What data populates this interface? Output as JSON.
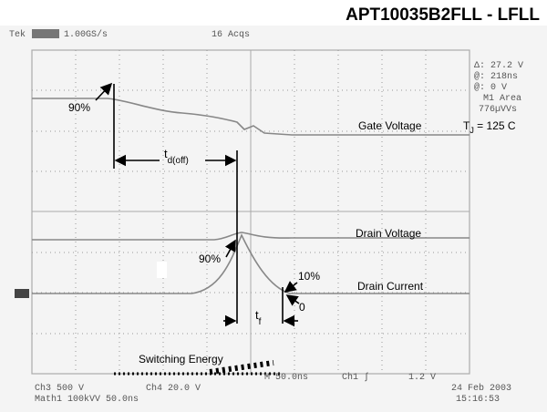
{
  "header": {
    "title": "APT10035B2FLL - LFLL"
  },
  "scope": {
    "brand": "Tek",
    "rate": "1.00GS/s",
    "acqs": "16 Acqs",
    "readouts": [
      "Δ: 27.2 V",
      "@: 218ns",
      "@: 0 V",
      "M1 Area",
      "776µVVs"
    ],
    "footer": {
      "ch3": "Ch3   500 V",
      "ch4": "Ch4   20.0 V",
      "time": "M 50.0ns",
      "trig": "Ch1 ∫",
      "level": "1.2 V",
      "math": "Math1   100kVV   50.0ns",
      "date": "24 Feb 2003",
      "clock": "15:16:53"
    }
  },
  "annotations": {
    "gate_pct": "90%",
    "td_base": "t",
    "td_sub": "d(off)",
    "gate": "Gate Voltage",
    "tj_base": "T",
    "tj_sub": "J",
    "tj_rest": " = 125 C",
    "drain_v": "Drain Voltage",
    "drain_pct": "90%",
    "ten_pct": "10%",
    "zero": "0",
    "drain_i": "Drain Current",
    "tf_base": "t",
    "tf_sub": "f",
    "energy": "Switching Energy"
  }
}
